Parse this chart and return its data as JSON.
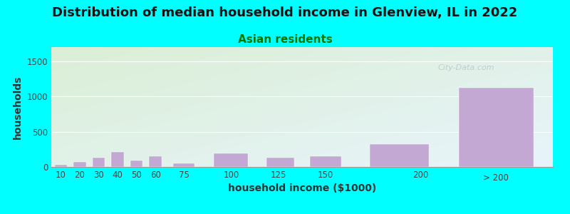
{
  "title": "Distribution of median household income in Glenview, IL in 2022",
  "subtitle": "Asian residents",
  "xlabel": "household income ($1000)",
  "ylabel": "households",
  "background_color": "#00FFFF",
  "plot_bg_top_left": "#daefd5",
  "plot_bg_top_right": "#f0faf0",
  "plot_bg_bottom_right": "#e8f4fc",
  "bar_color": "#c4a8d4",
  "categories": [
    "10",
    "20",
    "30",
    "40",
    "50",
    "60",
    "75",
    "100",
    "125",
    "150",
    "200",
    "> 200"
  ],
  "values": [
    30,
    75,
    130,
    210,
    90,
    150,
    55,
    195,
    130,
    150,
    325,
    1120
  ],
  "bar_widths": [
    1,
    1,
    1,
    1,
    1,
    1,
    1.5,
    1.5,
    1.5,
    1.5,
    2,
    4
  ],
  "bar_lefts": [
    9.5,
    19.5,
    29.5,
    39.5,
    49.5,
    59.5,
    73,
    92,
    117,
    142,
    168,
    220
  ],
  "ylim": [
    0,
    1700
  ],
  "yticks": [
    0,
    500,
    1000,
    1500
  ],
  "xlim": [
    5,
    270
  ],
  "xtick_positions": [
    10,
    20,
    30,
    40,
    50,
    60,
    75,
    100,
    125,
    150,
    200
  ],
  "watermark": "City-Data.com",
  "title_fontsize": 13,
  "subtitle_fontsize": 11,
  "axis_label_fontsize": 10
}
